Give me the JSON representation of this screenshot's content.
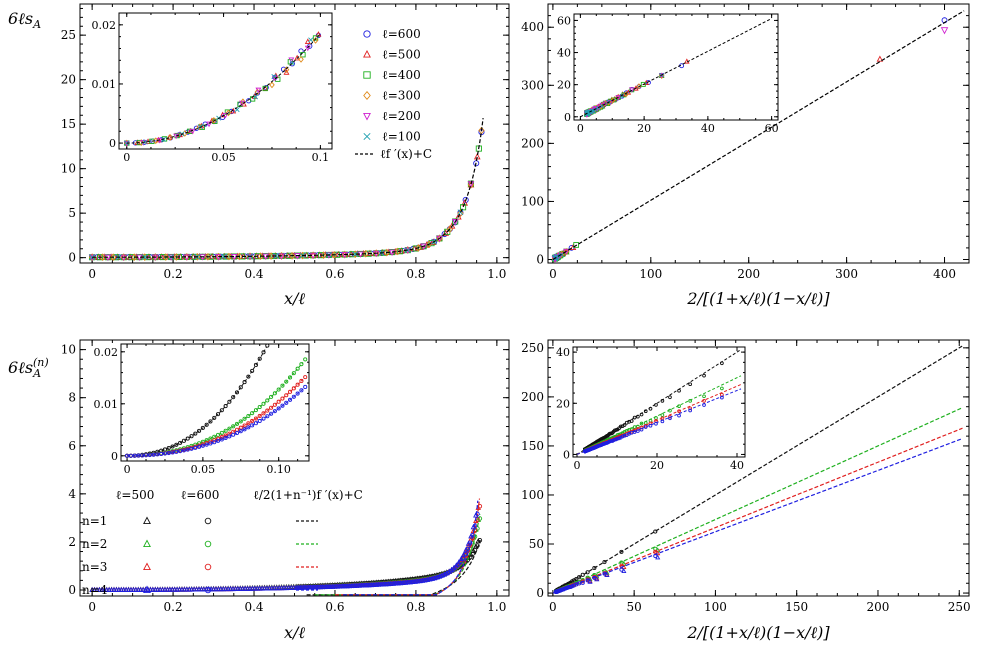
{
  "chart_data": [
    {
      "id": "tl",
      "type": "scatter",
      "ylabel": "6ℓs_A",
      "xlabel": "x/ℓ",
      "xlim": [
        -0.03,
        1.03
      ],
      "ylim": [
        -0.6,
        28.5
      ],
      "xticks": [
        0,
        0.2,
        0.4,
        0.6,
        0.8,
        1.0
      ],
      "xtick_labels": [
        "0",
        "0.2",
        "0.4",
        "0.6",
        "0.8",
        "1.0"
      ],
      "yticks": [
        0,
        5,
        10,
        15,
        20,
        25
      ],
      "ytick_labels": [
        "0",
        "5",
        "10",
        "15",
        "20",
        "25"
      ],
      "model": "log",
      "series": [
        {
          "name": "ℓ=600",
          "marker": "circle",
          "color": "#1f1fe0",
          "stride": 0.01,
          "offset": 0.0
        },
        {
          "name": "ℓ=500",
          "marker": "triangle",
          "color": "#e01f1f",
          "stride": 0.012,
          "offset": 0.0
        },
        {
          "name": "ℓ=400",
          "marker": "square",
          "color": "#1fb01f",
          "stride": 0.015,
          "offset": 0.0
        },
        {
          "name": "ℓ=300",
          "marker": "diamond",
          "color": "#e08a1a",
          "stride": 0.02,
          "offset": 0.0
        },
        {
          "name": "ℓ=200",
          "marker": "triangle-down",
          "color": "#d01fd0",
          "stride": 0.03,
          "offset": 0.0
        },
        {
          "name": "ℓ=100",
          "marker": "x",
          "color": "#1fa0b0",
          "stride": 0.05,
          "offset": 0.0
        }
      ],
      "fit_label": "ℓf ′(x)+C",
      "legend_position": "top-right",
      "inset": {
        "xlim": [
          -0.004,
          0.106
        ],
        "ylim": [
          -0.001,
          0.022
        ],
        "xticks": [
          0,
          0.05,
          0.1
        ],
        "xtick_labels": [
          "0",
          "0.05",
          "0.1"
        ],
        "yticks": [
          0,
          0.01,
          0.02
        ],
        "ytick_labels": [
          "0",
          "0.01",
          "0.02"
        ],
        "model": "quad2"
      }
    },
    {
      "id": "tr",
      "type": "scatter",
      "xlabel": "2/[(1+x/ℓ)(1−x/ℓ)]",
      "xlim": [
        -5,
        425
      ],
      "ylim": [
        -6,
        440
      ],
      "xticks": [
        0,
        100,
        200,
        300,
        400
      ],
      "xtick_labels": [
        "0",
        "100",
        "200",
        "300",
        "400"
      ],
      "yticks": [
        0,
        100,
        200,
        300,
        400
      ],
      "ytick_labels": [
        "0",
        "100",
        "200",
        "300",
        "400"
      ],
      "slope": 1.02,
      "inset": {
        "xlim": [
          -2,
          62
        ],
        "ylim": [
          -2,
          64
        ],
        "xticks": [
          0,
          20,
          40,
          60
        ],
        "xtick_labels": [
          "0",
          "20",
          "40",
          "60"
        ],
        "yticks": [
          0,
          20,
          40,
          60
        ],
        "ytick_labels": [
          "0",
          "20",
          "40",
          "60"
        ]
      }
    },
    {
      "id": "bl",
      "type": "scatter",
      "ylabel": "6ℓs_A^(n)",
      "xlabel": "x/ℓ",
      "xlim": [
        -0.03,
        1.03
      ],
      "ylim": [
        -0.25,
        10.4
      ],
      "xticks": [
        0,
        0.2,
        0.4,
        0.6,
        0.8,
        1.0
      ],
      "xtick_labels": [
        "0",
        "0.2",
        "0.4",
        "0.6",
        "0.8",
        "1.0"
      ],
      "yticks": [
        0,
        2,
        4,
        6,
        8,
        10
      ],
      "ytick_labels": [
        "0",
        "2",
        "4",
        "6",
        "8",
        "10"
      ],
      "series": [
        {
          "name": "n=1",
          "color": "#111111",
          "scale": 1.0,
          "shift": 1.0,
          "curve_start": 0.53
        },
        {
          "name": "n=2",
          "color": "#1fb01f",
          "scale": 0.75,
          "shift": 0.97,
          "curve_start": 0.55
        },
        {
          "name": "n=3",
          "color": "#e01f1f",
          "scale": 0.667,
          "shift": 0.96,
          "curve_start": 0.6
        },
        {
          "name": "n=4",
          "color": "#1f1fe0",
          "scale": 0.625,
          "shift": 0.955,
          "curve_start": 0.62
        }
      ],
      "legend_headers": [
        "ℓ=500",
        "ℓ=600",
        "ℓ/2(1+n⁻¹)f ′(x)+C"
      ],
      "legend_position": "bottom-left",
      "inset": {
        "xlim": [
          -0.004,
          0.12
        ],
        "ylim": [
          -0.001,
          0.0215
        ],
        "xticks": [
          0,
          0.05,
          0.1
        ],
        "xtick_labels": [
          "0",
          "0.05",
          "0.10"
        ],
        "yticks": [
          0,
          0.01,
          0.02
        ],
        "ytick_labels": [
          "0",
          "0.01",
          "0.02"
        ]
      }
    },
    {
      "id": "br",
      "type": "scatter",
      "xlabel": "2/[(1+x/ℓ)(1−x/ℓ)]",
      "xlim": [
        -3,
        256
      ],
      "ylim": [
        -3,
        258
      ],
      "xticks": [
        0,
        50,
        100,
        150,
        200,
        250
      ],
      "xtick_labels": [
        "0",
        "50",
        "100",
        "150",
        "200",
        "250"
      ],
      "yticks": [
        0,
        50,
        100,
        150,
        200,
        250
      ],
      "ytick_labels": [
        "0",
        "50",
        "100",
        "150",
        "200",
        "250"
      ],
      "slopes": [
        1.0,
        0.75,
        0.667,
        0.625
      ],
      "inset": {
        "xlim": [
          -1,
          42
        ],
        "ylim": [
          -1,
          42
        ],
        "xticks": [
          0,
          20,
          40
        ],
        "xtick_labels": [
          "0",
          "20",
          "40"
        ],
        "yticks": [
          0,
          20,
          40
        ],
        "ytick_labels": [
          "0",
          "20",
          "40"
        ]
      }
    }
  ]
}
